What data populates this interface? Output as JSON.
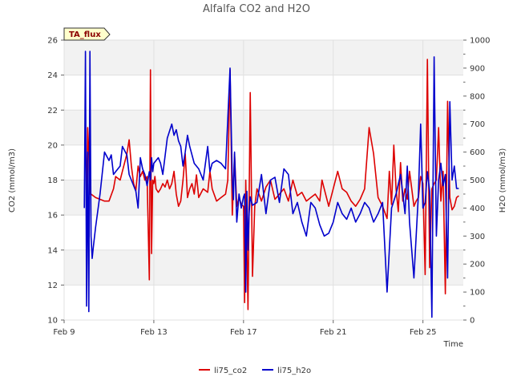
{
  "chart_data": {
    "type": "line",
    "title": "Alfalfa CO2 and H2O",
    "badge": "TA_flux",
    "xlabel": "Time",
    "ylabel": "CO2 (mmol/m3)",
    "y2label": "H2O (mmol/m3)",
    "xlim": [
      9,
      26.8
    ],
    "ylim": [
      10,
      26
    ],
    "y2lim": [
      0,
      1000
    ],
    "x_ticks": [
      9,
      13,
      17,
      21,
      25
    ],
    "x_tick_labels": [
      "Feb 9",
      "Feb 13",
      "Feb 17",
      "Feb 21",
      "Feb 25"
    ],
    "y_ticks": [
      10,
      12,
      14,
      16,
      18,
      20,
      22,
      24,
      26
    ],
    "y2_ticks": [
      0,
      100,
      200,
      300,
      400,
      500,
      600,
      700,
      800,
      900,
      1000
    ],
    "grid": true,
    "legend": "bottom",
    "colors": {
      "li75_co2": "#dd0000",
      "li75_h2o": "#0000cc",
      "band": "#f2f2f2",
      "badge_bg": "#ffffcc"
    },
    "series": [
      {
        "name": "li75_co2",
        "axis": "left",
        "x": [
          10.0,
          10.05,
          10.1,
          10.15,
          10.2,
          10.3,
          10.4,
          10.6,
          10.8,
          11.0,
          11.2,
          11.3,
          11.5,
          11.6,
          11.8,
          11.9,
          12.0,
          12.1,
          12.2,
          12.3,
          12.4,
          12.5,
          12.6,
          12.7,
          12.8,
          12.85,
          12.9,
          12.95,
          13.0,
          13.05,
          13.1,
          13.2,
          13.3,
          13.4,
          13.5,
          13.6,
          13.7,
          13.8,
          13.9,
          14.0,
          14.1,
          14.2,
          14.3,
          14.4,
          14.5,
          14.6,
          14.7,
          14.8,
          14.9,
          15.0,
          15.2,
          15.4,
          15.5,
          15.6,
          15.8,
          16.0,
          16.2,
          16.3,
          16.4,
          16.5,
          16.6,
          16.7,
          16.8,
          16.9,
          17.0,
          17.05,
          17.1,
          17.2,
          17.3,
          17.4,
          17.5,
          17.6,
          17.8,
          18.0,
          18.2,
          18.4,
          18.6,
          18.8,
          19.0,
          19.2,
          19.4,
          19.6,
          19.8,
          20.0,
          20.2,
          20.4,
          20.5,
          20.6,
          20.8,
          21.0,
          21.2,
          21.4,
          21.6,
          21.8,
          22.0,
          22.2,
          22.4,
          22.6,
          22.8,
          23.0,
          23.2,
          23.4,
          23.5,
          23.6,
          23.7,
          23.8,
          23.9,
          24.0,
          24.1,
          24.2,
          24.3,
          24.4,
          24.5,
          24.6,
          24.7,
          24.8,
          24.9,
          25.0,
          25.1,
          25.2,
          25.3,
          25.4,
          25.5,
          25.6,
          25.7,
          25.8,
          25.9,
          26.0,
          26.1,
          26.2,
          26.3,
          26.4,
          26.5,
          26.6
        ],
        "y": [
          16.5,
          21.0,
          19.5,
          17.2,
          17.2,
          17.1,
          17.0,
          16.9,
          16.8,
          16.8,
          17.5,
          18.2,
          18.0,
          18.5,
          19.5,
          20.3,
          18.8,
          17.8,
          17.4,
          18.8,
          18.2,
          18.5,
          18.0,
          18.2,
          12.3,
          24.3,
          13.8,
          18.0,
          17.8,
          18.2,
          17.5,
          17.3,
          17.5,
          17.8,
          17.6,
          18.0,
          17.5,
          17.8,
          18.5,
          17.2,
          16.5,
          16.8,
          18.0,
          19.5,
          17.0,
          17.5,
          17.8,
          17.2,
          18.3,
          17.0,
          17.5,
          17.3,
          18.5,
          17.5,
          16.8,
          17.0,
          17.2,
          18.0,
          24.3,
          16.0,
          19.5,
          16.5,
          17.0,
          16.6,
          16.5,
          11.0,
          18.0,
          10.6,
          23.0,
          12.5,
          16.5,
          17.5,
          16.8,
          17.6,
          18.0,
          16.9,
          17.2,
          17.5,
          16.8,
          18.0,
          17.1,
          17.3,
          16.8,
          17.0,
          17.2,
          16.8,
          18.0,
          17.5,
          16.5,
          17.5,
          18.5,
          17.5,
          17.3,
          16.8,
          16.5,
          16.9,
          17.5,
          21.0,
          19.5,
          17.0,
          16.5,
          15.8,
          18.5,
          16.6,
          20.0,
          17.5,
          16.2,
          19.0,
          16.8,
          17.5,
          16.9,
          18.5,
          17.5,
          16.5,
          16.8,
          17.0,
          18.2,
          17.8,
          12.6,
          24.9,
          13.0,
          17.5,
          17.8,
          18.0,
          21.0,
          16.8,
          18.5,
          11.5,
          22.5,
          17.0,
          16.3,
          16.5,
          17.0,
          17.1
        ]
      },
      {
        "name": "li75_h2o",
        "axis": "right",
        "x": [
          9.9,
          9.95,
          10.0,
          10.05,
          10.1,
          10.15,
          10.2,
          10.25,
          10.3,
          10.4,
          10.6,
          10.8,
          11.0,
          11.1,
          11.2,
          11.3,
          11.5,
          11.6,
          11.8,
          11.9,
          12.0,
          12.1,
          12.2,
          12.3,
          12.4,
          12.5,
          12.6,
          12.7,
          12.8,
          12.85,
          12.9,
          12.95,
          13.0,
          13.1,
          13.2,
          13.3,
          13.4,
          13.6,
          13.8,
          13.9,
          14.0,
          14.1,
          14.2,
          14.3,
          14.4,
          14.5,
          14.6,
          14.8,
          15.0,
          15.2,
          15.4,
          15.5,
          15.6,
          15.8,
          16.0,
          16.2,
          16.4,
          16.5,
          16.55,
          16.6,
          16.7,
          16.8,
          16.9,
          17.0,
          17.05,
          17.1,
          17.15,
          17.2,
          17.25,
          17.3,
          17.4,
          17.6,
          17.8,
          18.0,
          18.2,
          18.4,
          18.6,
          18.8,
          19.0,
          19.2,
          19.4,
          19.6,
          19.8,
          20.0,
          20.2,
          20.4,
          20.6,
          20.8,
          21.0,
          21.2,
          21.4,
          21.6,
          21.8,
          22.0,
          22.2,
          22.4,
          22.6,
          22.8,
          23.0,
          23.2,
          23.4,
          23.6,
          23.8,
          24.0,
          24.2,
          24.3,
          24.4,
          24.6,
          24.8,
          24.9,
          25.0,
          25.1,
          25.2,
          25.3,
          25.4,
          25.5,
          25.6,
          25.7,
          25.8,
          25.9,
          26.0,
          26.1,
          26.2,
          26.3,
          26.4,
          26.5,
          26.6
        ],
        "y": [
          400,
          960,
          50,
          600,
          30,
          960,
          300,
          220,
          260,
          330,
          450,
          600,
          570,
          590,
          520,
          530,
          550,
          620,
          590,
          520,
          500,
          480,
          460,
          400,
          580,
          540,
          520,
          480,
          530,
          500,
          580,
          530,
          560,
          570,
          580,
          560,
          520,
          650,
          700,
          660,
          680,
          640,
          620,
          550,
          600,
          660,
          620,
          560,
          540,
          500,
          620,
          530,
          560,
          570,
          560,
          540,
          900,
          500,
          430,
          600,
          350,
          450,
          400,
          440,
          450,
          100,
          460,
          250,
          380,
          440,
          410,
          420,
          520,
          380,
          500,
          510,
          420,
          540,
          520,
          380,
          420,
          350,
          300,
          420,
          400,
          340,
          300,
          310,
          350,
          420,
          380,
          360,
          400,
          350,
          380,
          420,
          400,
          350,
          380,
          420,
          100,
          400,
          450,
          520,
          380,
          550,
          350,
          150,
          450,
          700,
          400,
          420,
          530,
          460,
          10,
          940,
          300,
          500,
          560,
          480,
          520,
          150,
          780,
          500,
          550,
          470,
          470
        ]
      }
    ],
    "legend_entries": [
      "li75_co2",
      "li75_h2o"
    ]
  }
}
